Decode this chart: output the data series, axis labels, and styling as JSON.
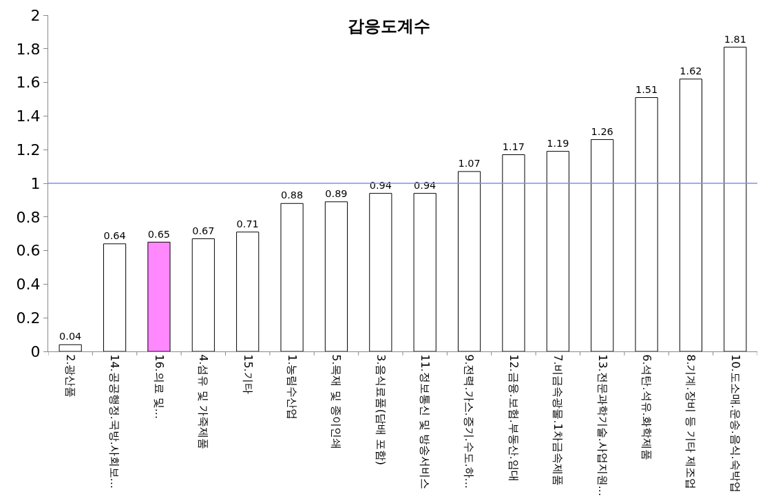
{
  "chart_data": {
    "type": "bar",
    "title": "갑응도계수",
    "categories": [
      "2.광산품",
      "14.공공행정.국방.사회보...",
      "16.의료 및...",
      "4.섬유 및 가죽제품",
      "15.기타",
      "1.농림수산업",
      "5.목재 및 종이인쇄",
      "3.음식료품(담배 포함)",
      "11.정보통신 및 방송서비스",
      "9.전력.가스.증기.수도.하...",
      "12.금융.보험.부동산.임대",
      "7.비금속광물.1차금속제품",
      "13.전문과학기술.사업지원...",
      "6.석탄.석유.화학제품",
      "8.기계.장비 등 기타 제조업",
      "10.도소매.운송.음식.숙박업"
    ],
    "values": [
      0.04,
      0.64,
      0.65,
      0.67,
      0.71,
      0.88,
      0.89,
      0.94,
      0.94,
      1.07,
      1.17,
      1.19,
      1.26,
      1.51,
      1.62,
      1.81
    ],
    "colors": [
      "#ffffff",
      "#ffffff",
      "#ff88ff",
      "#ffffff",
      "#ffffff",
      "#ffffff",
      "#ffffff",
      "#ffffff",
      "#ffffff",
      "#ffffff",
      "#ffffff",
      "#ffffff",
      "#ffffff",
      "#ffffff",
      "#ffffff",
      "#ffffff"
    ],
    "ylim": [
      0,
      2
    ],
    "yticks": [
      0,
      0.2,
      0.4,
      0.6,
      0.8,
      1,
      1.2,
      1.4,
      1.6,
      1.8,
      2
    ],
    "ref_lines": [
      {
        "axis": "y",
        "value": 1,
        "color": "#8888ee"
      }
    ],
    "data_labels": true
  }
}
